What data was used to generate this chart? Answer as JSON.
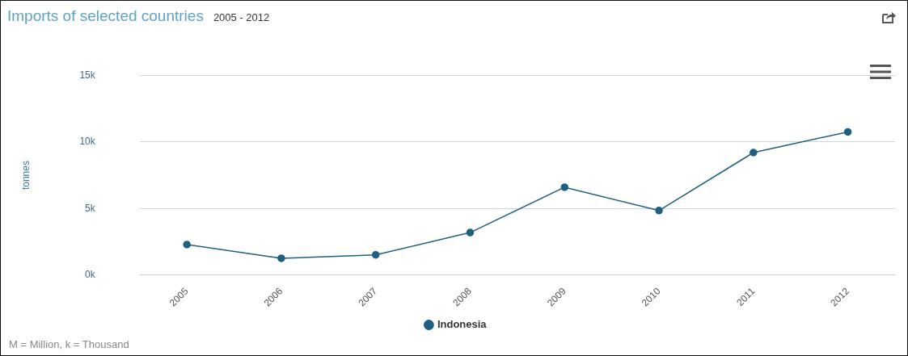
{
  "chart_data": {
    "type": "line",
    "title": "Imports of selected countries",
    "subtitle": "2005 - 2012",
    "ylabel": "tonnes",
    "categories": [
      "2005",
      "2006",
      "2007",
      "2008",
      "2009",
      "2010",
      "2011",
      "2012"
    ],
    "series": [
      {
        "name": "Indonesia",
        "color": "#1f5f7f",
        "values": [
          2300,
          1270,
          1530,
          3200,
          6600,
          4850,
          9200,
          10750
        ]
      }
    ],
    "ylim": [
      0,
      15000
    ],
    "yticks": [
      {
        "value": 0,
        "label": "0k"
      },
      {
        "value": 5000,
        "label": "5k"
      },
      {
        "value": 10000,
        "label": "10k"
      },
      {
        "value": 15000,
        "label": "15k"
      }
    ],
    "grid": "y",
    "legend": "bottom",
    "marker": "circle",
    "line_style": "solid",
    "annotations": [
      "M = Million, k = Thousand"
    ]
  }
}
